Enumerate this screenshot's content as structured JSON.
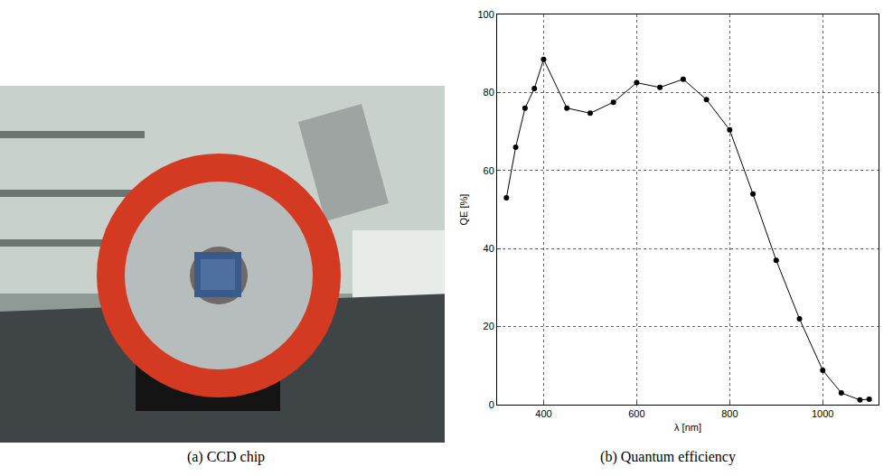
{
  "photo": {
    "caption": "(a) CCD chip"
  },
  "chart_data": {
    "type": "line",
    "caption": "(b) Quantum efficiency",
    "x_label": "λ [nm]",
    "y_label": "QE [%]",
    "x": [
      320,
      340,
      360,
      380,
      400,
      450,
      500,
      550,
      600,
      650,
      700,
      750,
      800,
      850,
      900,
      950,
      1000,
      1040,
      1080,
      1100
    ],
    "values": [
      53,
      66,
      76,
      81,
      88.5,
      76,
      74.7,
      77.5,
      82.5,
      81.3,
      83.4,
      78.2,
      70.4,
      54,
      37,
      22,
      8.8,
      3,
      1.2,
      1.4
    ],
    "xlim": [
      300,
      1120
    ],
    "xticks": [
      400,
      600,
      800,
      1000
    ],
    "ylim": [
      0,
      100
    ],
    "yticks": [
      0,
      20,
      40,
      60,
      80,
      100
    ],
    "grid": true,
    "color": "#000000",
    "marker": "circle",
    "line_style": "solid"
  }
}
